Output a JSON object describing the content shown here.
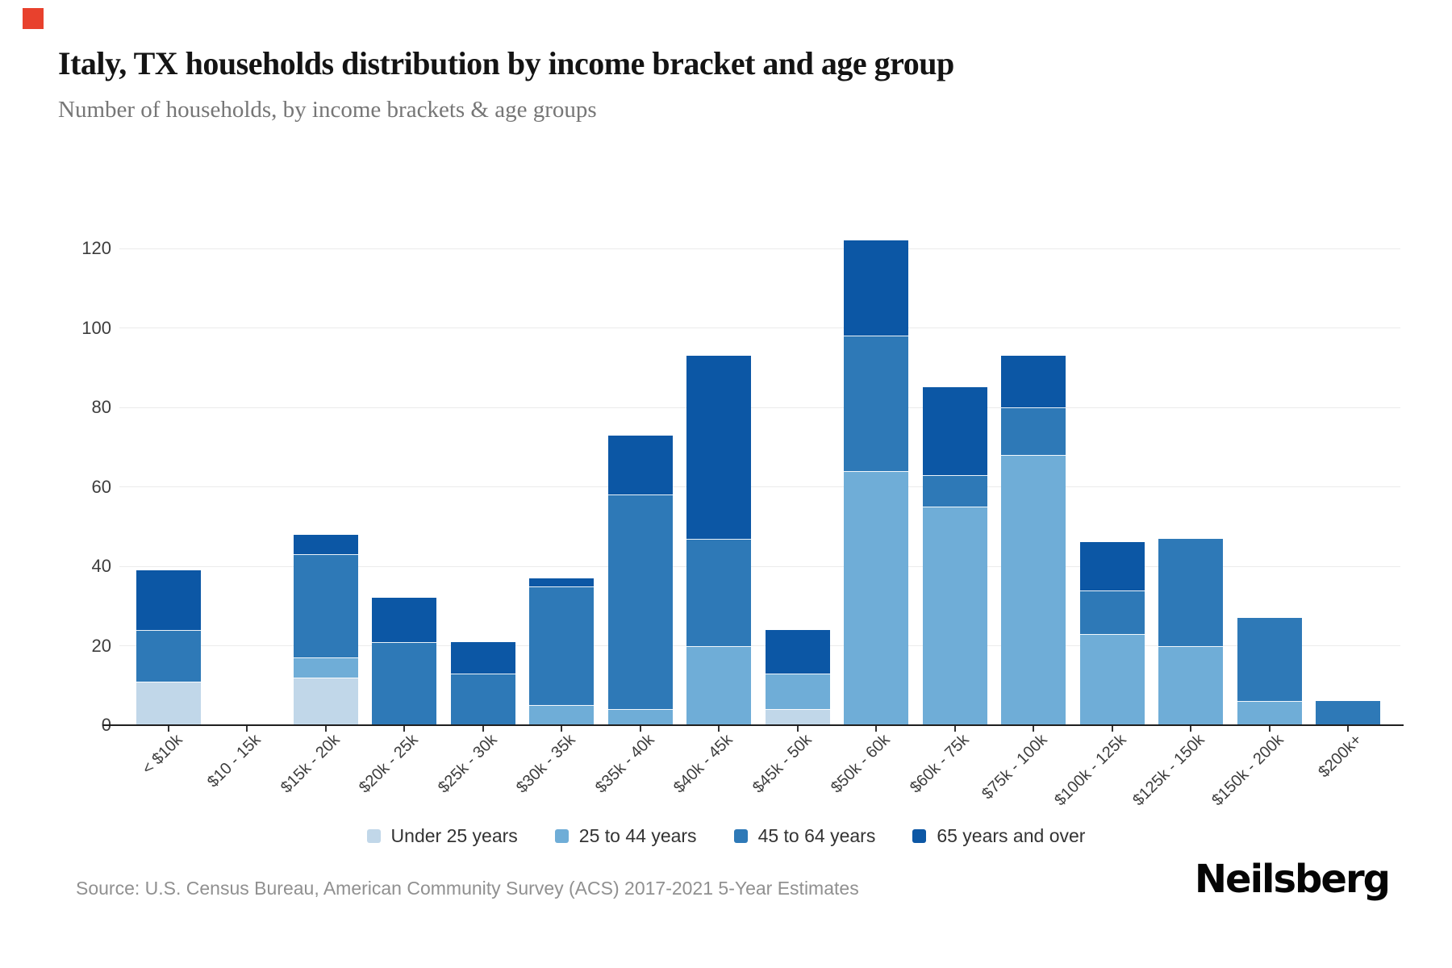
{
  "indicator_color": "#e8412d",
  "header": {
    "title": "Italy, TX households distribution by income bracket and age group",
    "subtitle": "Number of households, by income brackets & age groups"
  },
  "chart_data": {
    "type": "bar",
    "stacked": true,
    "title": "Italy, TX households distribution by income bracket and age group",
    "xlabel": "",
    "ylabel": "",
    "categories": [
      "< $10k",
      "$10 - 15k",
      "$15k - 20k",
      "$20k - 25k",
      "$25k - 30k",
      "$30k - 35k",
      "$35k - 40k",
      "$40k - 45k",
      "$45k - 50k",
      "$50k - 60k",
      "$60k - 75k",
      "$75k - 100k",
      "$100k - 125k",
      "$125k - 150k",
      "$150k - 200k",
      "$200k+"
    ],
    "series": [
      {
        "name": "Under 25 years",
        "color": "#c1d7e9",
        "values": [
          11,
          0,
          12,
          0,
          0,
          0,
          0,
          0,
          4,
          0,
          0,
          0,
          0,
          0,
          0,
          0
        ]
      },
      {
        "name": "25 to 44 years",
        "color": "#6fadd7",
        "values": [
          0,
          0,
          5,
          0,
          0,
          5,
          4,
          20,
          9,
          64,
          55,
          68,
          23,
          20,
          6,
          0
        ]
      },
      {
        "name": "45 to 64 years",
        "color": "#2e79b7",
        "values": [
          13,
          0,
          26,
          21,
          13,
          30,
          54,
          27,
          0,
          34,
          8,
          12,
          11,
          27,
          21,
          6
        ]
      },
      {
        "name": "65 years and over",
        "color": "#0c57a5",
        "values": [
          15,
          0,
          5,
          11,
          8,
          2,
          15,
          46,
          11,
          24,
          22,
          13,
          12,
          0,
          0,
          0
        ]
      }
    ],
    "totals": [
      39,
      0,
      48,
      32,
      21,
      37,
      73,
      93,
      24,
      122,
      85,
      93,
      46,
      47,
      27,
      6
    ],
    "yticks": [
      0,
      20,
      40,
      60,
      80,
      100,
      120
    ],
    "ylim": [
      0,
      125
    ],
    "grid": true,
    "legend_position": "bottom"
  },
  "footer": {
    "source": "Source: U.S. Census Bureau, American Community Survey (ACS) 2017-2021 5-Year Estimates",
    "logo": "Neilsberg"
  }
}
